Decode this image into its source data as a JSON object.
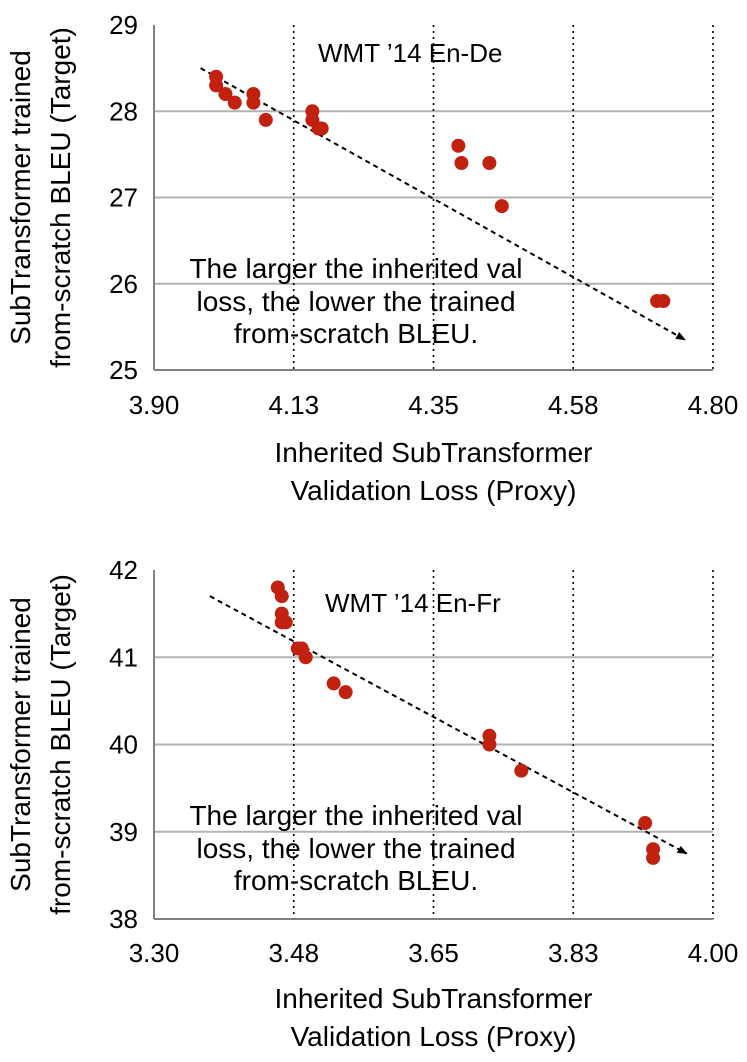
{
  "colors": {
    "point": "#c0220f",
    "grid": "#b3b3b3",
    "axis": "#808080",
    "trend": "#000000"
  },
  "chart_data": [
    {
      "type": "scatter",
      "title": "WMT ’14 En-De",
      "xlabel": [
        "Inherited SubTransformer",
        "Validation Loss (Proxy)"
      ],
      "ylabel": [
        "SubTransformer trained",
        "from-scratch BLEU (Target)"
      ],
      "annotation": [
        "The larger the inherited val",
        "loss, the lower the trained",
        "from-scratch BLEU."
      ],
      "xlim": [
        3.9,
        4.8
      ],
      "ylim": [
        25,
        29
      ],
      "xticks": [
        3.9,
        4.125,
        4.35,
        4.575,
        4.8
      ],
      "xtick_labels": [
        "3.90",
        "4.13",
        "4.35",
        "4.58",
        "4.80"
      ],
      "yticks": [
        25,
        26,
        27,
        28,
        29
      ],
      "ytick_labels": [
        "25",
        "26",
        "27",
        "28",
        "29"
      ],
      "grid": {
        "horizontal": "solid",
        "vertical": "dotted"
      },
      "trend": {
        "from": [
          3.975,
          28.5
        ],
        "to": [
          4.755,
          25.35
        ],
        "arrow": "end"
      },
      "points": [
        {
          "x": 4.0,
          "y": 28.4
        },
        {
          "x": 4.0,
          "y": 28.3
        },
        {
          "x": 4.015,
          "y": 28.2
        },
        {
          "x": 4.03,
          "y": 28.1
        },
        {
          "x": 4.06,
          "y": 28.2
        },
        {
          "x": 4.06,
          "y": 28.1
        },
        {
          "x": 4.08,
          "y": 27.9
        },
        {
          "x": 4.155,
          "y": 28.0
        },
        {
          "x": 4.155,
          "y": 27.9
        },
        {
          "x": 4.165,
          "y": 27.8
        },
        {
          "x": 4.17,
          "y": 27.8
        },
        {
          "x": 4.39,
          "y": 27.6
        },
        {
          "x": 4.395,
          "y": 27.4
        },
        {
          "x": 4.44,
          "y": 27.4
        },
        {
          "x": 4.46,
          "y": 26.9
        },
        {
          "x": 4.71,
          "y": 25.8
        },
        {
          "x": 4.72,
          "y": 25.8
        }
      ]
    },
    {
      "type": "scatter",
      "title": "WMT ’14 En-Fr",
      "xlabel": [
        "Inherited SubTransformer",
        "Validation Loss (Proxy)"
      ],
      "ylabel": [
        "SubTransformer trained",
        "from-scratch BLEU (Target)"
      ],
      "annotation": [
        "The larger the inherited val",
        "loss, the lower the trained",
        "from-scratch BLEU."
      ],
      "xlim": [
        3.3,
        4.0
      ],
      "ylim": [
        38,
        42
      ],
      "xticks": [
        3.3,
        3.475,
        3.65,
        3.825,
        4.0
      ],
      "xtick_labels": [
        "3.30",
        "3.48",
        "3.65",
        "3.83",
        "4.00"
      ],
      "yticks": [
        38,
        39,
        40,
        41,
        42
      ],
      "ytick_labels": [
        "38",
        "39",
        "40",
        "41",
        "42"
      ],
      "grid": {
        "horizontal": "solid",
        "vertical": "dotted"
      },
      "trend": {
        "from": [
          3.37,
          41.7
        ],
        "to": [
          3.967,
          38.75
        ],
        "arrow": "end"
      },
      "points": [
        {
          "x": 3.455,
          "y": 41.8
        },
        {
          "x": 3.46,
          "y": 41.7
        },
        {
          "x": 3.46,
          "y": 41.5
        },
        {
          "x": 3.46,
          "y": 41.4
        },
        {
          "x": 3.465,
          "y": 41.4
        },
        {
          "x": 3.48,
          "y": 41.1
        },
        {
          "x": 3.485,
          "y": 41.1
        },
        {
          "x": 3.49,
          "y": 41.0
        },
        {
          "x": 3.525,
          "y": 40.7
        },
        {
          "x": 3.54,
          "y": 40.6
        },
        {
          "x": 3.72,
          "y": 40.1
        },
        {
          "x": 3.72,
          "y": 40.0
        },
        {
          "x": 3.76,
          "y": 39.7
        },
        {
          "x": 3.915,
          "y": 39.1
        },
        {
          "x": 3.925,
          "y": 38.8
        },
        {
          "x": 3.925,
          "y": 38.7
        }
      ]
    }
  ]
}
